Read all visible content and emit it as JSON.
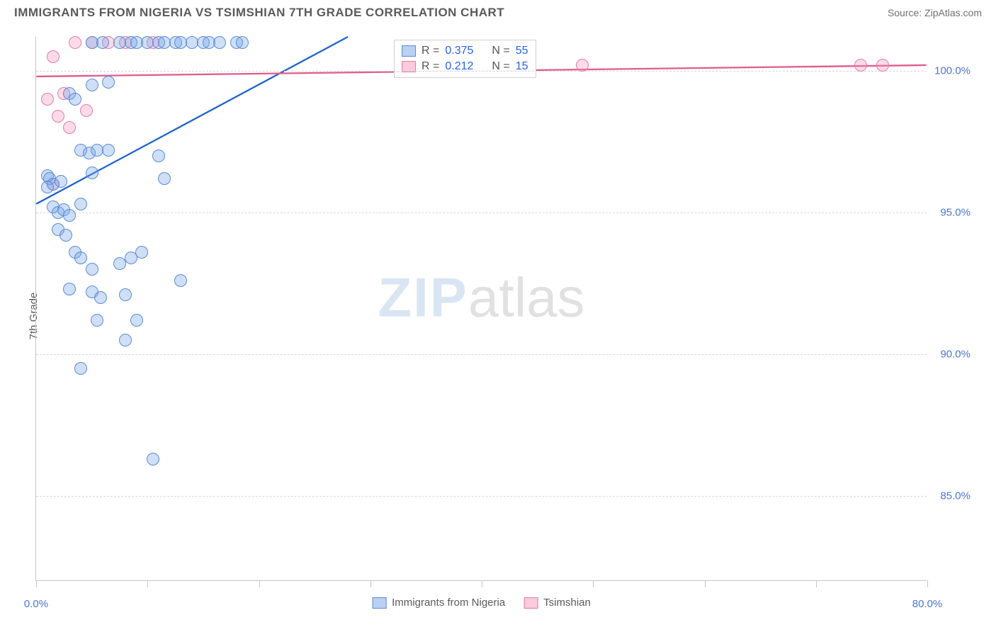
{
  "header": {
    "title": "IMMIGRANTS FROM NIGERIA VS TSIMSHIAN 7TH GRADE CORRELATION CHART",
    "source": "Source: ZipAtlas.com"
  },
  "chart": {
    "type": "scatter",
    "y_axis_label": "7th Grade",
    "xlim": [
      0,
      80
    ],
    "ylim": [
      82,
      101.2
    ],
    "ytick_values": [
      85,
      90,
      95,
      100
    ],
    "ytick_labels": [
      "85.0%",
      "90.0%",
      "95.0%",
      "100.0%"
    ],
    "xtick_values": [
      0,
      10,
      20,
      30,
      40,
      50,
      60,
      70,
      80
    ],
    "xtick_labels_shown": {
      "0": "0.0%",
      "80": "80.0%"
    },
    "grid_color": "#d8d8d8",
    "background_color": "#ffffff",
    "axis_color": "#c5c5c5",
    "tick_label_color": "#4a76d4",
    "marker_radius": 9,
    "series": {
      "blue": {
        "label": "Immigrants from Nigeria",
        "fill": "rgba(115,163,230,0.35)",
        "stroke": "#5a8cd6",
        "trend_color": "#1e62d0",
        "trend_width": 2.3,
        "trend": {
          "x1": 0,
          "y1": 95.3,
          "x2": 28,
          "y2": 101.2
        },
        "R": "0.375",
        "N": "55",
        "points": [
          [
            1.0,
            96.3
          ],
          [
            1.2,
            96.2
          ],
          [
            1.5,
            96.0
          ],
          [
            1.0,
            95.9
          ],
          [
            2.2,
            96.1
          ],
          [
            1.5,
            95.2
          ],
          [
            2.0,
            95.0
          ],
          [
            2.5,
            95.1
          ],
          [
            3.0,
            94.9
          ],
          [
            4.0,
            95.3
          ],
          [
            2.0,
            94.4
          ],
          [
            2.7,
            94.2
          ],
          [
            4.0,
            97.2
          ],
          [
            4.8,
            97.1
          ],
          [
            5.5,
            97.2
          ],
          [
            6.5,
            97.2
          ],
          [
            5.0,
            96.4
          ],
          [
            11.0,
            97.0
          ],
          [
            11.5,
            96.2
          ],
          [
            3.5,
            93.6
          ],
          [
            4.0,
            93.4
          ],
          [
            5.0,
            93.0
          ],
          [
            7.5,
            93.2
          ],
          [
            8.5,
            93.4
          ],
          [
            9.5,
            93.6
          ],
          [
            3.0,
            92.3
          ],
          [
            5.0,
            92.2
          ],
          [
            5.8,
            92.0
          ],
          [
            8.0,
            92.1
          ],
          [
            13.0,
            92.6
          ],
          [
            5.5,
            91.2
          ],
          [
            9.0,
            91.2
          ],
          [
            8.0,
            90.5
          ],
          [
            4.0,
            89.5
          ],
          [
            10.5,
            86.3
          ],
          [
            5.0,
            101.0
          ],
          [
            6.0,
            101.0
          ],
          [
            7.5,
            101.0
          ],
          [
            8.5,
            101.0
          ],
          [
            9.0,
            101.0
          ],
          [
            10.0,
            101.0
          ],
          [
            11.0,
            101.0
          ],
          [
            11.5,
            101.0
          ],
          [
            12.5,
            101.0
          ],
          [
            13.0,
            101.0
          ],
          [
            14.0,
            101.0
          ],
          [
            15.0,
            101.0
          ],
          [
            15.5,
            101.0
          ],
          [
            16.5,
            101.0
          ],
          [
            18.0,
            101.0
          ],
          [
            18.5,
            101.0
          ],
          [
            3.0,
            99.2
          ],
          [
            3.5,
            99.0
          ],
          [
            5.0,
            99.5
          ],
          [
            6.5,
            99.6
          ]
        ]
      },
      "pink": {
        "label": "Tsimshian",
        "fill": "rgba(243,152,185,0.35)",
        "stroke": "#e77aa5",
        "trend_color": "#e05a8e",
        "trend_width": 2.3,
        "trend": {
          "x1": 0,
          "y1": 99.8,
          "x2": 80,
          "y2": 100.2
        },
        "R": "0.212",
        "N": "15",
        "points": [
          [
            1.0,
            99.0
          ],
          [
            2.0,
            98.4
          ],
          [
            2.5,
            99.2
          ],
          [
            3.0,
            98.0
          ],
          [
            4.5,
            98.6
          ],
          [
            1.5,
            96.0
          ],
          [
            3.5,
            101.0
          ],
          [
            5.0,
            101.0
          ],
          [
            6.5,
            101.0
          ],
          [
            8.0,
            101.0
          ],
          [
            10.5,
            101.0
          ],
          [
            49.0,
            100.2
          ],
          [
            74.0,
            100.2
          ],
          [
            76.0,
            100.2
          ],
          [
            1.5,
            100.5
          ]
        ]
      }
    },
    "stats_legend": {
      "rows": [
        {
          "swatch": "blue",
          "r_label": "R =",
          "r_val": "0.375",
          "n_label": "N =",
          "n_val": "55"
        },
        {
          "swatch": "pink",
          "r_label": "R =",
          "r_val": "0.212",
          "n_label": "N =",
          "n_val": "15"
        }
      ]
    },
    "bottom_legend": [
      {
        "swatch": "blue",
        "label": "Immigrants from Nigeria"
      },
      {
        "swatch": "pink",
        "label": "Tsimshian"
      }
    ],
    "watermark": {
      "zip": "ZIP",
      "atlas": "atlas"
    }
  }
}
